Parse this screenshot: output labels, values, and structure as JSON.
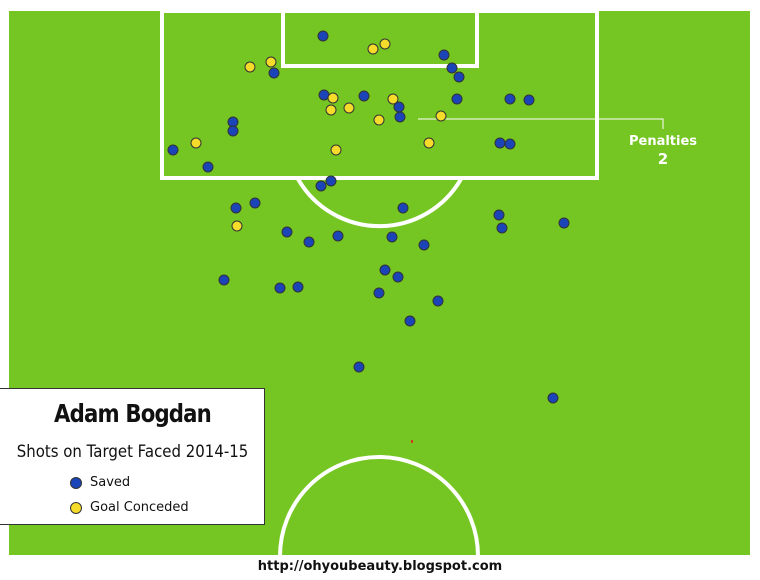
{
  "legend": {
    "title": "Adam Bogdan",
    "subtitle": "Shots on Target Faced 2014-15",
    "saved_label": "Saved",
    "goal_label": "Goal Conceded"
  },
  "penalties": {
    "label": "Penalties",
    "count": "2"
  },
  "footer": {
    "url": "http://ohyoubeauty.blogspot.com"
  },
  "colors": {
    "pitch": "#75c623",
    "lines": "#ffffff",
    "saved": "#1a44b8",
    "goal": "#f5dc2a"
  },
  "chart_data": {
    "type": "scatter",
    "title": "Adam Bogdan",
    "subtitle": "Shots on Target Faced 2014-15",
    "series": [
      {
        "name": "Saved",
        "points": [
          [
            323,
            36
          ],
          [
            444,
            55
          ],
          [
            452,
            68
          ],
          [
            459,
            77
          ],
          [
            274,
            73
          ],
          [
            324,
            95
          ],
          [
            364,
            96
          ],
          [
            399,
            107
          ],
          [
            457,
            99
          ],
          [
            510,
            99
          ],
          [
            529,
            100
          ],
          [
            233,
            122
          ],
          [
            233,
            131
          ],
          [
            400,
            117
          ],
          [
            500,
            143
          ],
          [
            510,
            144
          ],
          [
            173,
            150
          ],
          [
            208,
            167
          ],
          [
            331,
            181
          ],
          [
            321,
            186
          ],
          [
            255,
            203
          ],
          [
            236,
            208
          ],
          [
            403,
            208
          ],
          [
            499,
            215
          ],
          [
            564,
            223
          ],
          [
            502,
            228
          ],
          [
            287,
            232
          ],
          [
            309,
            242
          ],
          [
            338,
            236
          ],
          [
            392,
            237
          ],
          [
            424,
            245
          ],
          [
            385,
            270
          ],
          [
            398,
            277
          ],
          [
            224,
            280
          ],
          [
            280,
            288
          ],
          [
            298,
            287
          ],
          [
            379,
            293
          ],
          [
            438,
            301
          ],
          [
            410,
            321
          ],
          [
            359,
            367
          ],
          [
            553,
            398
          ]
        ]
      },
      {
        "name": "Goal Conceded",
        "points": [
          [
            373,
            49
          ],
          [
            385,
            44
          ],
          [
            250,
            67
          ],
          [
            271,
            62
          ],
          [
            333,
            98
          ],
          [
            331,
            110
          ],
          [
            349,
            108
          ],
          [
            393,
            99
          ],
          [
            379,
            120
          ],
          [
            441,
            116
          ],
          [
            429,
            143
          ],
          [
            196,
            143
          ],
          [
            336,
            150
          ],
          [
            237,
            226
          ]
        ]
      }
    ],
    "annotations": [
      {
        "label": "Penalties",
        "value": 2
      }
    ]
  }
}
